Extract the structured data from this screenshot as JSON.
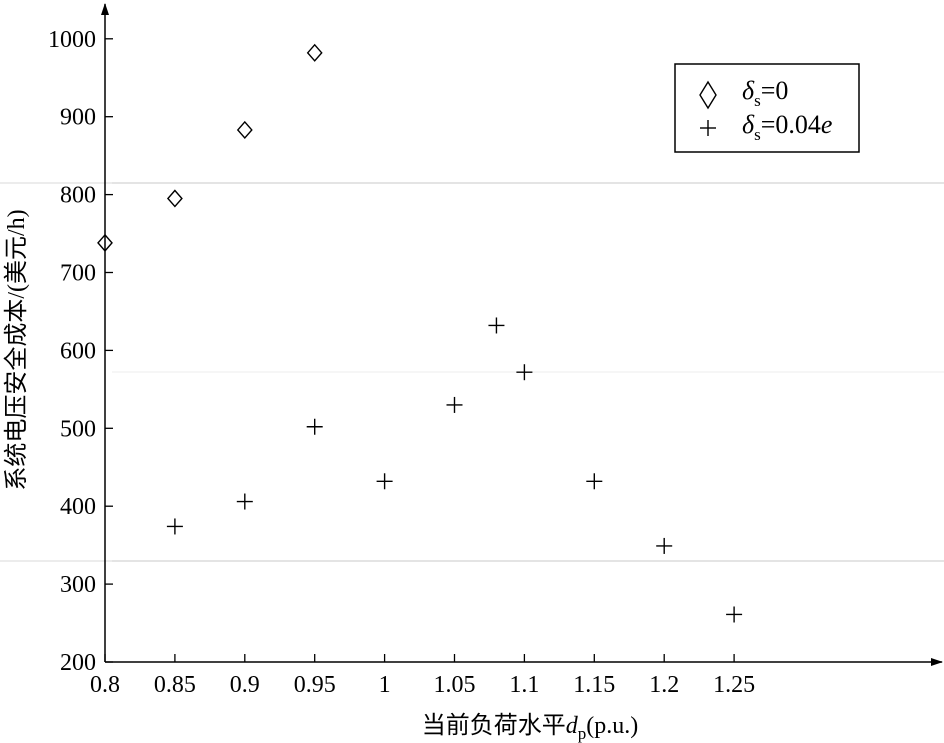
{
  "chart_data": {
    "type": "scatter",
    "xlabel_main": "当前负荷水平",
    "xlabel_var": "d",
    "xlabel_sub": "p",
    "xlabel_tail": "(p.u.)",
    "ylabel": "系统电压安全成本/(美元/h)",
    "xlim": [
      0.8,
      1.27
    ],
    "ylim": [
      200,
      1050
    ],
    "x_ticks": [
      0.8,
      0.85,
      0.9,
      0.95,
      1,
      1.05,
      1.1,
      1.15,
      1.2,
      1.25
    ],
    "x_tick_labels": [
      "0.8",
      "0.85",
      "0.9",
      "0.95",
      "1",
      "1.05",
      "1.1",
      "1.15",
      "1.2",
      "1.25"
    ],
    "y_ticks": [
      200,
      300,
      400,
      500,
      600,
      700,
      800,
      900,
      1000
    ],
    "y_tick_labels": [
      "200",
      "300",
      "400",
      "500",
      "600",
      "700",
      "800",
      "900",
      "1000"
    ],
    "legend_position": "top-right",
    "series": [
      {
        "marker": "diamond",
        "legend_var": "δ",
        "legend_sub": "s",
        "legend_tail": "=0",
        "points": [
          {
            "x": 0.8,
            "y": 738
          },
          {
            "x": 0.85,
            "y": 795
          },
          {
            "x": 0.9,
            "y": 883
          },
          {
            "x": 0.95,
            "y": 982
          }
        ]
      },
      {
        "marker": "plus",
        "legend_var": "δ",
        "legend_sub": "s",
        "legend_tail": "=0.04",
        "legend_tail_italic": "e",
        "points": [
          {
            "x": 0.85,
            "y": 374
          },
          {
            "x": 0.9,
            "y": 406
          },
          {
            "x": 0.95,
            "y": 502
          },
          {
            "x": 1.0,
            "y": 432
          },
          {
            "x": 1.05,
            "y": 530
          },
          {
            "x": 1.08,
            "y": 632
          },
          {
            "x": 1.1,
            "y": 572
          },
          {
            "x": 1.15,
            "y": 432
          },
          {
            "x": 1.2,
            "y": 349
          },
          {
            "x": 1.25,
            "y": 261
          }
        ]
      }
    ]
  }
}
